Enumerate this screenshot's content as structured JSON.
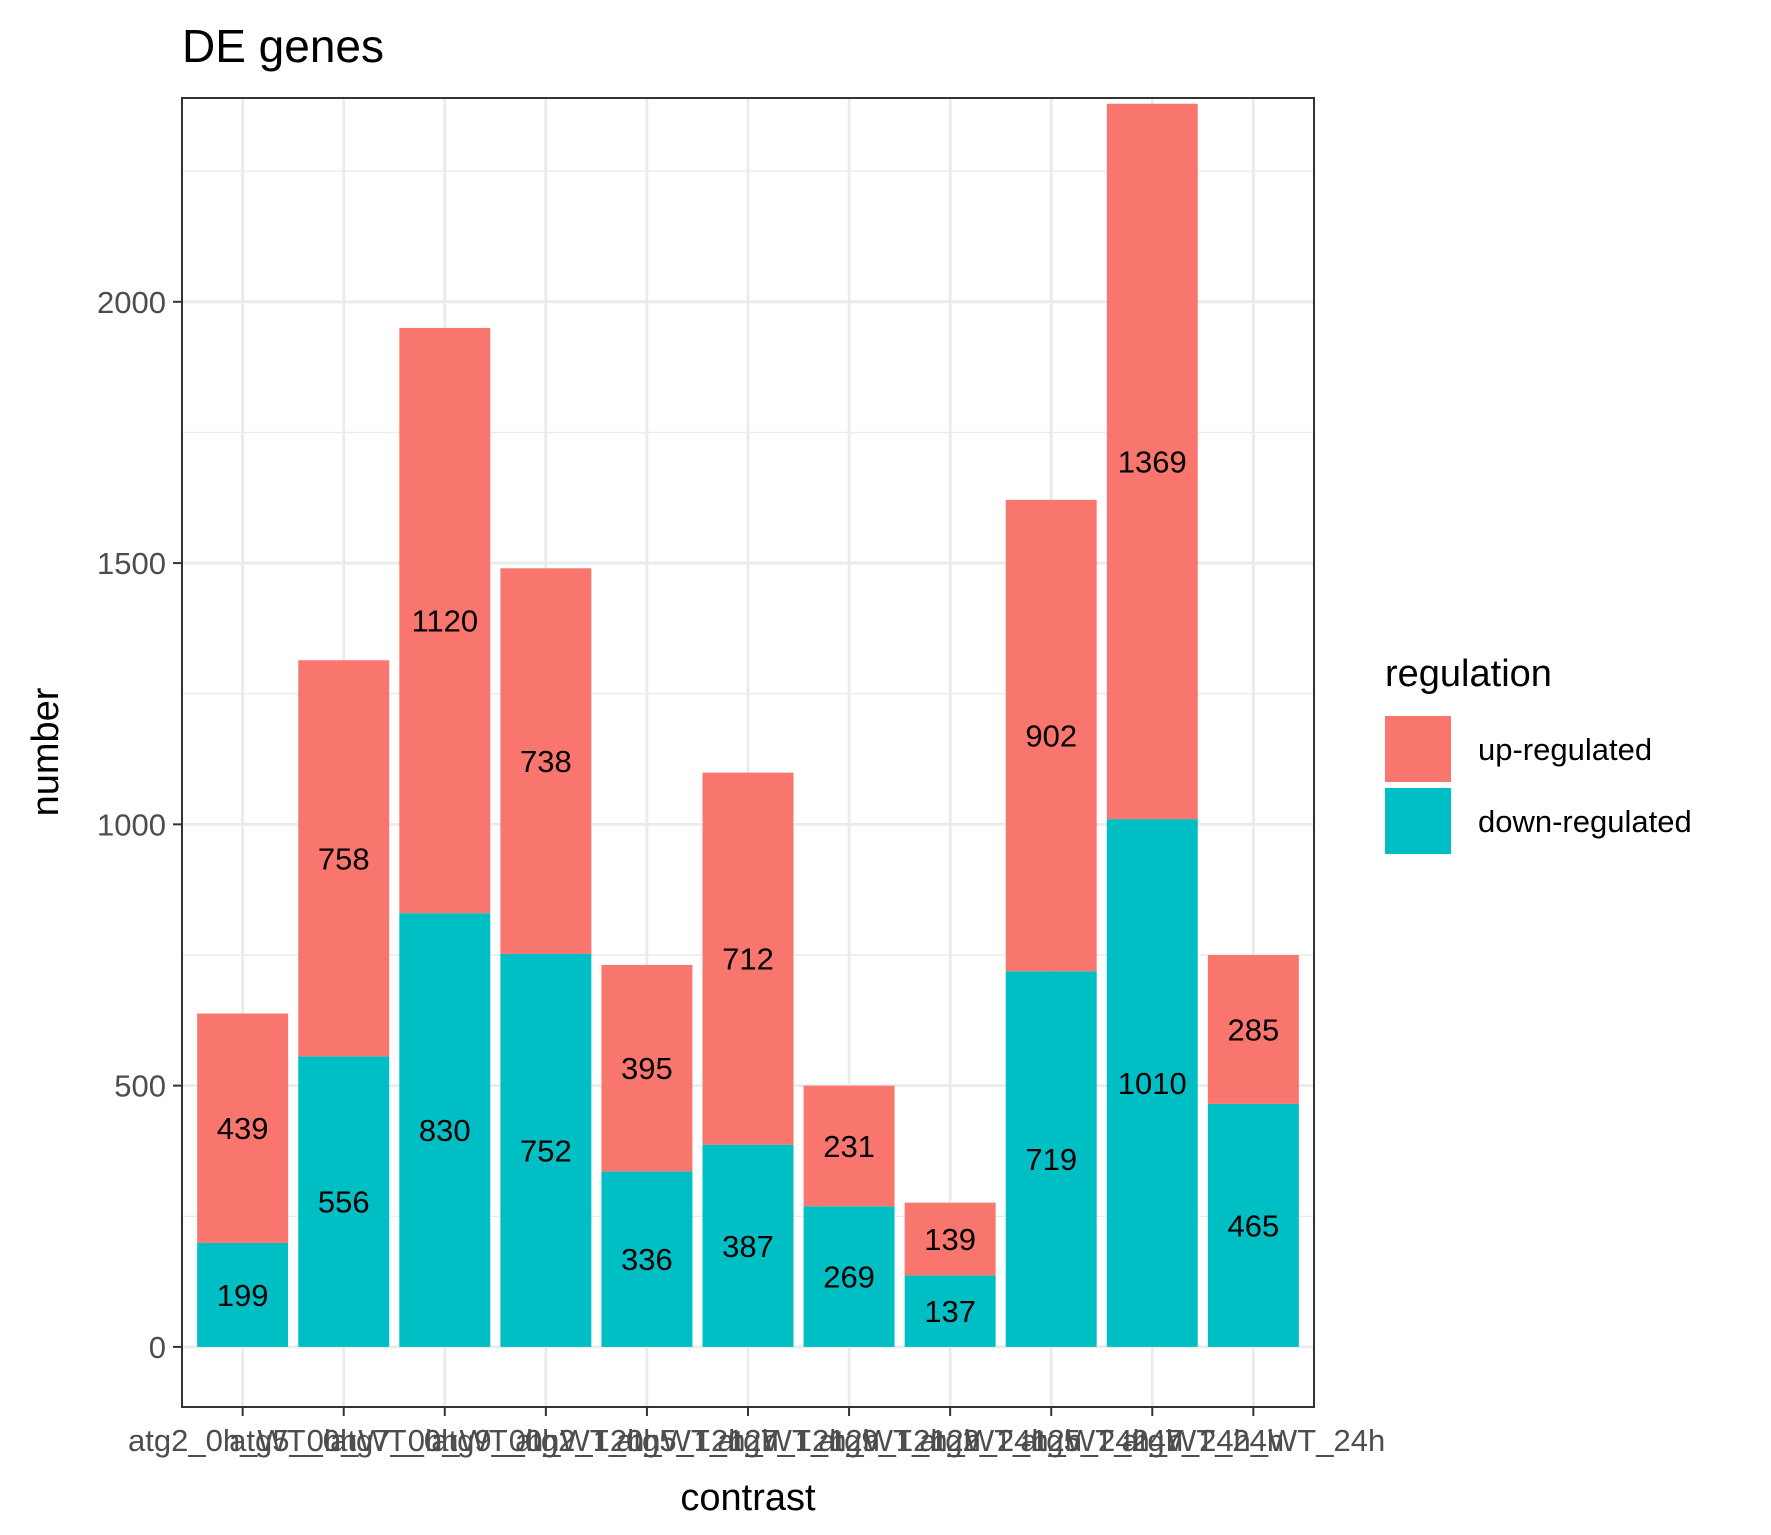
{
  "chart_data": {
    "type": "bar",
    "stacked": true,
    "title": "DE genes",
    "xlabel": "contrast",
    "ylabel": "number",
    "ylim": [
      -115,
      2390
    ],
    "yticks": [
      0,
      500,
      1000,
      1500,
      2000
    ],
    "grid": true,
    "categories": [
      "atg2_0h_WT_0h",
      "atg5_0h_WT_0h",
      "atg7_0h_WT_0h",
      "atg9_0h_WT_0h",
      "atg2_12h_WT_12h",
      "atg5_12h_WT_12h",
      "atg7_12h_WT_12h",
      "atg9_12h_WT_12h",
      "atg2_24h_WT_24h",
      "atg5_24h_WT_24h",
      "atg7_24h_WT_24h"
    ],
    "legend": {
      "title": "regulation",
      "position": "right"
    },
    "series": [
      {
        "name": "down-regulated",
        "color": "#00BFC4",
        "values": [
          199,
          556,
          830,
          752,
          336,
          387,
          269,
          137,
          719,
          1010,
          465
        ]
      },
      {
        "name": "up-regulated",
        "color": "#F8766D",
        "values": [
          439,
          758,
          1120,
          738,
          395,
          712,
          231,
          139,
          902,
          1369,
          285
        ]
      }
    ],
    "legend_order": [
      "up-regulated",
      "down-regulated"
    ]
  }
}
